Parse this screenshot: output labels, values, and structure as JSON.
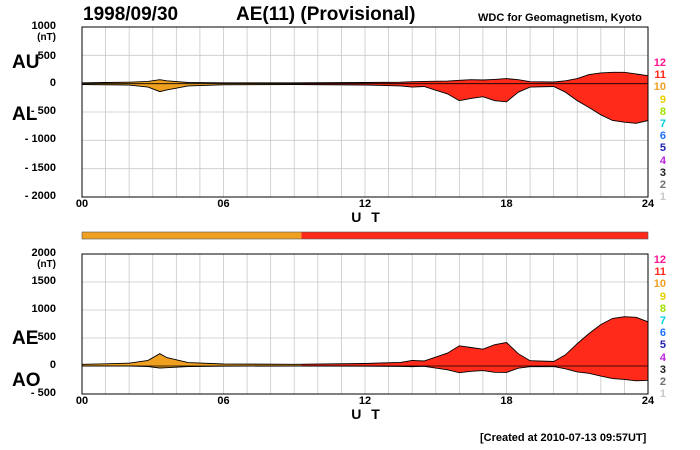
{
  "header": {
    "date": "1998/09/30",
    "title": "AE(11) (Provisional)",
    "source": "WDC for Geomagnetism, Kyoto"
  },
  "footer": {
    "created": "[Created at 2010-07-13 09:57UT]"
  },
  "colors": {
    "provisional_early": "#f0a020",
    "provisional_late": "#ff2a1a",
    "line": "#000000",
    "grid": "#c8c8c8"
  },
  "legend": {
    "items": [
      {
        "label": "12",
        "color": "#ff1493"
      },
      {
        "label": "11",
        "color": "#ff2a1a"
      },
      {
        "label": "10",
        "color": "#f0a020"
      },
      {
        "label": "9",
        "color": "#e8d000"
      },
      {
        "label": "8",
        "color": "#a0e000"
      },
      {
        "label": "7",
        "color": "#00d0e0"
      },
      {
        "label": "6",
        "color": "#1e6fff"
      },
      {
        "label": "5",
        "color": "#2020b0"
      },
      {
        "label": "4",
        "color": "#c020e0"
      },
      {
        "label": "3",
        "color": "#202020"
      },
      {
        "label": "2",
        "color": "#707070"
      },
      {
        "label": "1",
        "color": "#c8c8c8"
      }
    ]
  },
  "status_bar": {
    "segments": [
      {
        "start": 0,
        "end": 9.3,
        "color": "#f0a020"
      },
      {
        "start": 9.3,
        "end": 24,
        "color": "#ff2a1a"
      }
    ]
  },
  "chart_data": [
    {
      "type": "area",
      "name": "AU/AL",
      "side_labels": {
        "upper": "AU",
        "lower": "AL"
      },
      "unit": "(nT)",
      "xlabel": "U T",
      "xticks": [
        "00",
        "06",
        "12",
        "18",
        "24"
      ],
      "yticks": [
        "1000",
        "500",
        "0",
        "- 500",
        "- 1000",
        "- 1500",
        "- 2000"
      ],
      "ylim": [
        -2000,
        1000
      ],
      "xlim": [
        0,
        24
      ],
      "grid": true,
      "color_change_hour": 9.3,
      "upper_series": {
        "name": "AU",
        "x": [
          0,
          1,
          2,
          2.8,
          3.3,
          3.6,
          4.5,
          6,
          9,
          12,
          13.5,
          14,
          14.5,
          15.5,
          16,
          16.5,
          17,
          17.5,
          18,
          18.5,
          19,
          20,
          20.5,
          21,
          21.5,
          22,
          22.5,
          23,
          23.5,
          24
        ],
        "y": [
          15,
          20,
          25,
          40,
          70,
          50,
          20,
          15,
          15,
          20,
          25,
          35,
          40,
          45,
          60,
          70,
          65,
          75,
          90,
          70,
          35,
          30,
          50,
          90,
          160,
          190,
          200,
          200,
          170,
          140
        ]
      },
      "lower_series": {
        "name": "AL",
        "x": [
          0,
          1,
          2,
          2.8,
          3.3,
          3.6,
          4.5,
          6,
          9,
          12,
          13.5,
          14,
          14.5,
          15.5,
          16,
          16.5,
          17,
          17.5,
          18,
          18.5,
          19,
          20,
          20.5,
          21,
          21.5,
          22,
          22.5,
          23,
          23.5,
          24
        ],
        "y": [
          -15,
          -20,
          -25,
          -60,
          -140,
          -110,
          -40,
          -20,
          -15,
          -25,
          -40,
          -60,
          -50,
          -180,
          -300,
          -260,
          -230,
          -300,
          -320,
          -150,
          -60,
          -50,
          -150,
          -300,
          -420,
          -550,
          -650,
          -680,
          -700,
          -650
        ]
      }
    },
    {
      "type": "area",
      "name": "AE/AO",
      "side_labels": {
        "upper": "AE",
        "lower": "AO"
      },
      "unit": "(nT)",
      "xlabel": "U T",
      "xticks": [
        "00",
        "06",
        "12",
        "18",
        "24"
      ],
      "yticks": [
        "2000",
        "1500",
        "1000",
        "500",
        "0",
        "- 500"
      ],
      "ylim": [
        -500,
        2000
      ],
      "xlim": [
        0,
        24
      ],
      "grid": true,
      "color_change_hour": 9.3,
      "upper_series": {
        "name": "AE",
        "x": [
          0,
          1,
          2,
          2.8,
          3.3,
          3.6,
          4.5,
          6,
          9,
          12,
          13.5,
          14,
          14.5,
          15.5,
          16,
          16.5,
          17,
          17.5,
          18,
          18.5,
          19,
          20,
          20.5,
          21,
          21.5,
          22,
          22.5,
          23,
          23.5,
          24
        ],
        "y": [
          30,
          40,
          50,
          100,
          220,
          150,
          60,
          35,
          30,
          45,
          65,
          100,
          90,
          230,
          360,
          330,
          300,
          380,
          420,
          220,
          95,
          80,
          200,
          400,
          580,
          740,
          850,
          880,
          870,
          790
        ]
      },
      "lower_series": {
        "name": "AO",
        "x": [
          0,
          1,
          2,
          2.8,
          3.3,
          3.6,
          4.5,
          6,
          9,
          12,
          13.5,
          14,
          14.5,
          15.5,
          16,
          16.5,
          17,
          17.5,
          18,
          18.5,
          19,
          20,
          20.5,
          21,
          21.5,
          22,
          22.5,
          23,
          23.5,
          24
        ],
        "y": [
          0,
          0,
          0,
          -10,
          -35,
          -30,
          -10,
          -3,
          0,
          -3,
          -8,
          -13,
          -5,
          -68,
          -120,
          -95,
          -83,
          -113,
          -115,
          -40,
          -13,
          -10,
          -50,
          -105,
          -130,
          -180,
          -225,
          -240,
          -265,
          -255
        ]
      }
    }
  ]
}
